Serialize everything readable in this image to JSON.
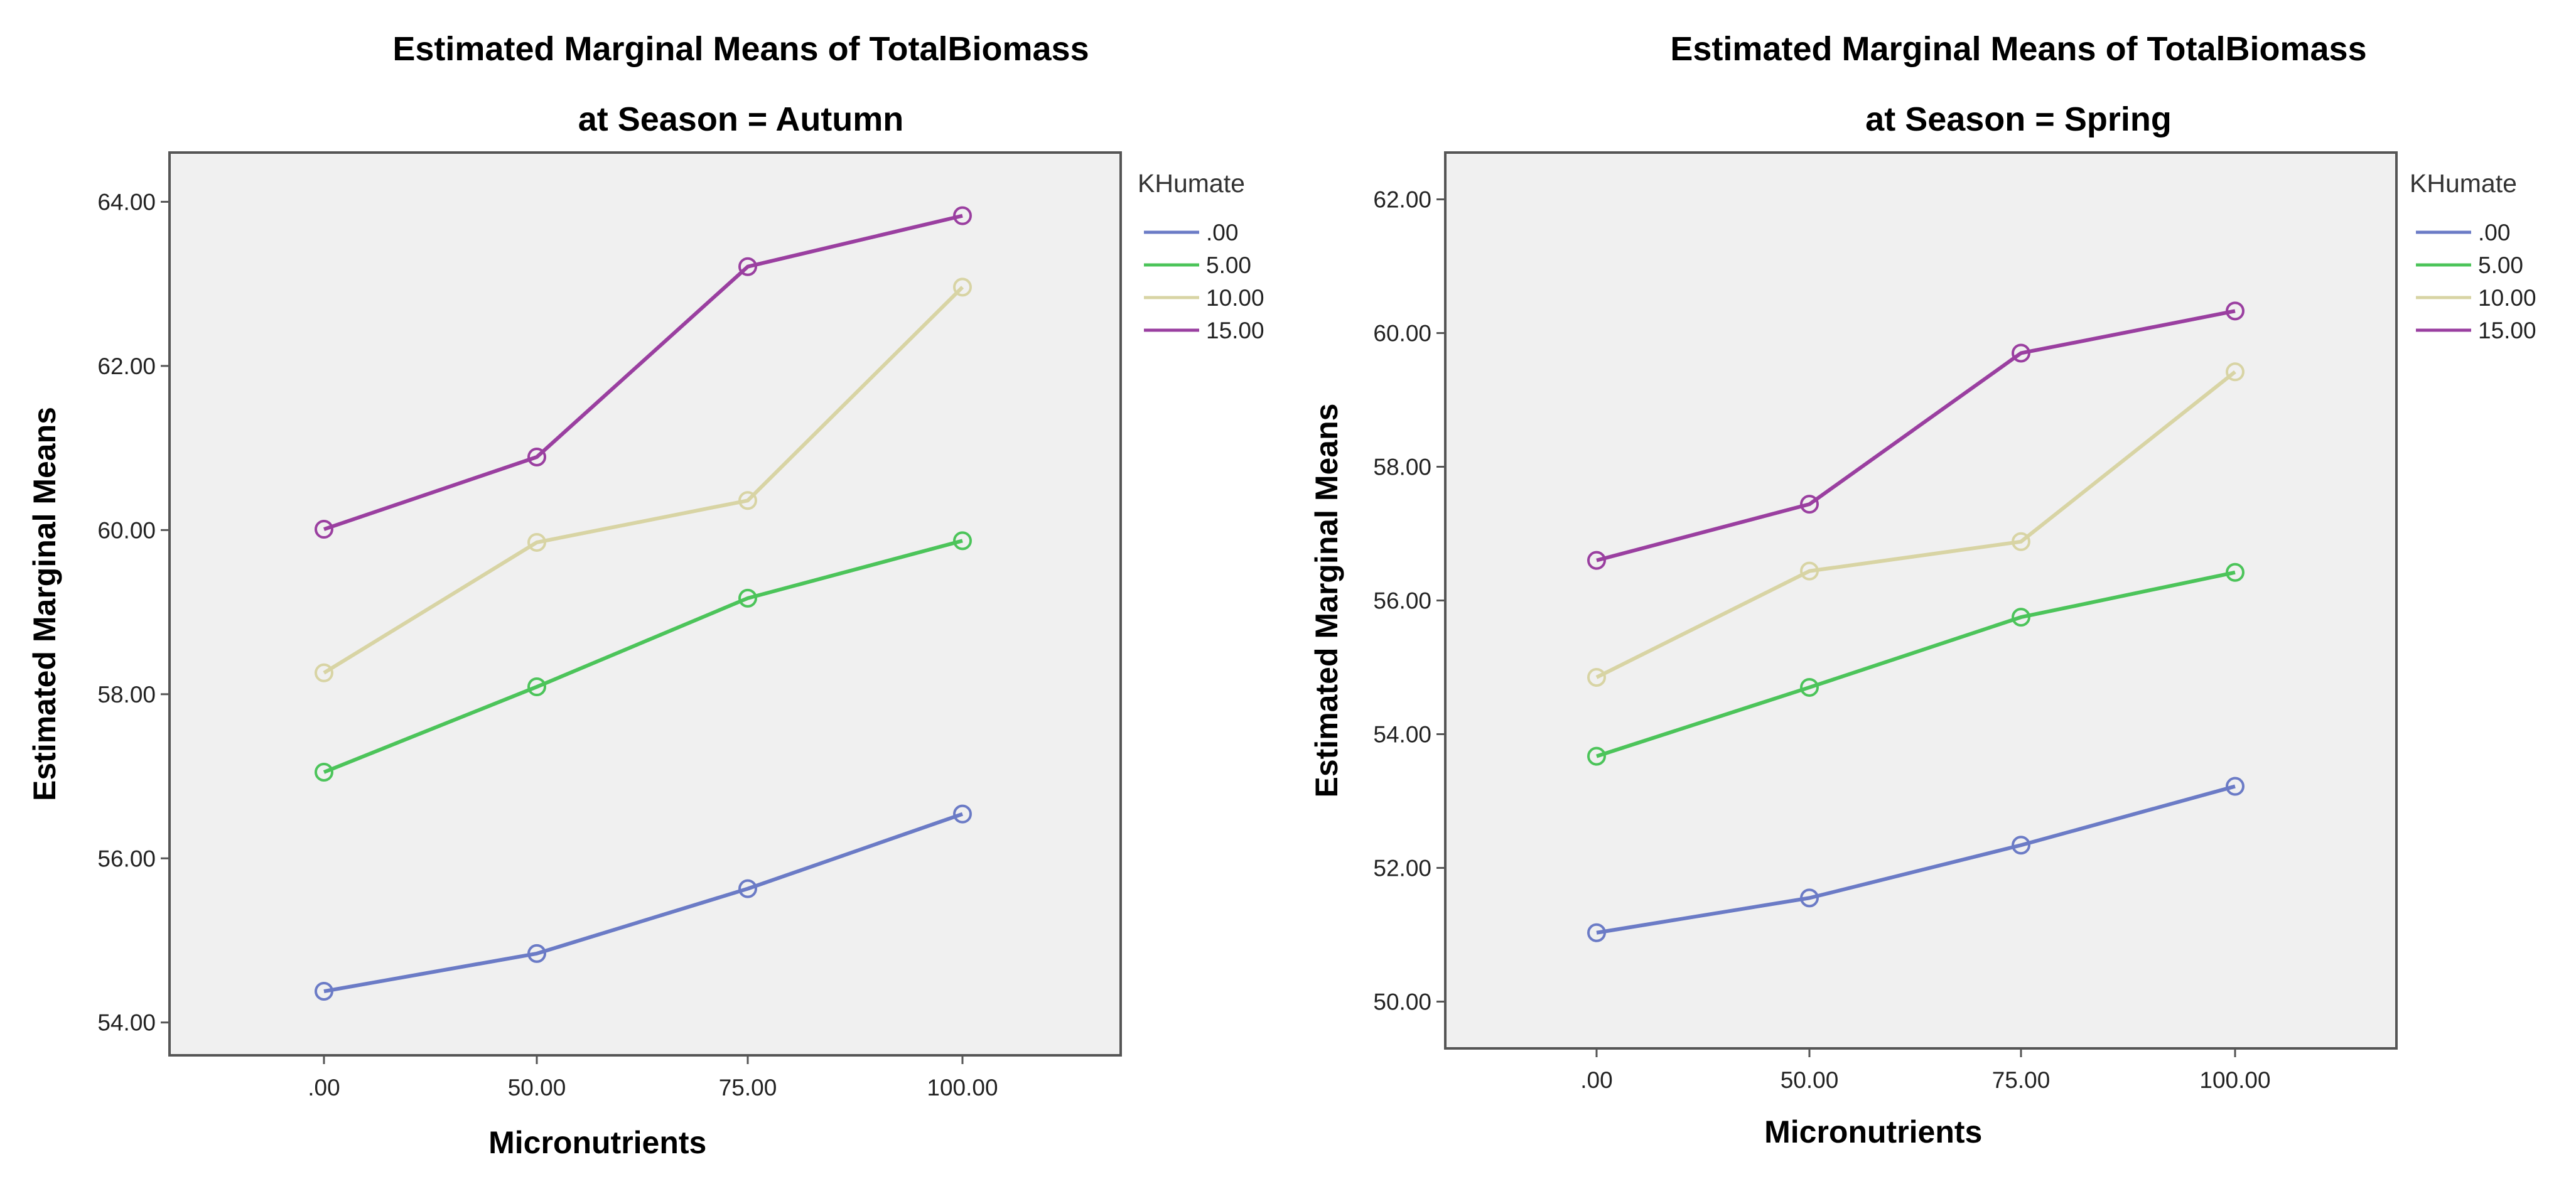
{
  "chart_data": [
    {
      "type": "line",
      "title": "Estimated Marginal Means of TotalBiomass",
      "subtitle": "at Season = Autumn",
      "xlabel": "Micronutrients",
      "ylabel": "Estimated Marginal Means",
      "categories": [
        ".00",
        "50.00",
        "75.00",
        "100.00"
      ],
      "yticks": [
        "54.00",
        "56.00",
        "58.00",
        "60.00",
        "62.00",
        "64.00"
      ],
      "ylim": [
        53.6,
        64.6
      ],
      "grid": false,
      "legend": {
        "title": "KHumate",
        "placement": "right"
      },
      "series": [
        {
          "name": ".00",
          "color": "#6b7bc6",
          "values": [
            54.38,
            54.84,
            55.63,
            56.54
          ]
        },
        {
          "name": "5.00",
          "color": "#4cc45a",
          "values": [
            57.05,
            58.09,
            59.17,
            59.87
          ]
        },
        {
          "name": "10.00",
          "color": "#d8d4a4",
          "values": [
            58.26,
            59.85,
            60.36,
            62.96
          ]
        },
        {
          "name": "15.00",
          "color": "#9a3fa0",
          "values": [
            60.01,
            60.89,
            63.21,
            63.83
          ]
        }
      ]
    },
    {
      "type": "line",
      "title": "Estimated Marginal Means of TotalBiomass",
      "subtitle": "at Season = Spring",
      "xlabel": "Micronutrients",
      "ylabel": "Estimated Marginal Means",
      "categories": [
        ".00",
        "50.00",
        "75.00",
        "100.00"
      ],
      "yticks": [
        "50.00",
        "52.00",
        "54.00",
        "56.00",
        "58.00",
        "60.00",
        "62.00"
      ],
      "ylim": [
        49.3,
        62.7
      ],
      "grid": false,
      "legend": {
        "title": "KHumate",
        "placement": "right"
      },
      "series": [
        {
          "name": ".00",
          "color": "#6b7bc6",
          "values": [
            51.03,
            51.55,
            52.34,
            53.22
          ]
        },
        {
          "name": "5.00",
          "color": "#4cc45a",
          "values": [
            53.67,
            54.7,
            55.75,
            56.42
          ]
        },
        {
          "name": "10.00",
          "color": "#d8d4a4",
          "values": [
            54.85,
            56.44,
            56.88,
            59.42
          ]
        },
        {
          "name": "15.00",
          "color": "#9a3fa0",
          "values": [
            56.6,
            57.44,
            59.7,
            60.33
          ]
        }
      ]
    }
  ]
}
